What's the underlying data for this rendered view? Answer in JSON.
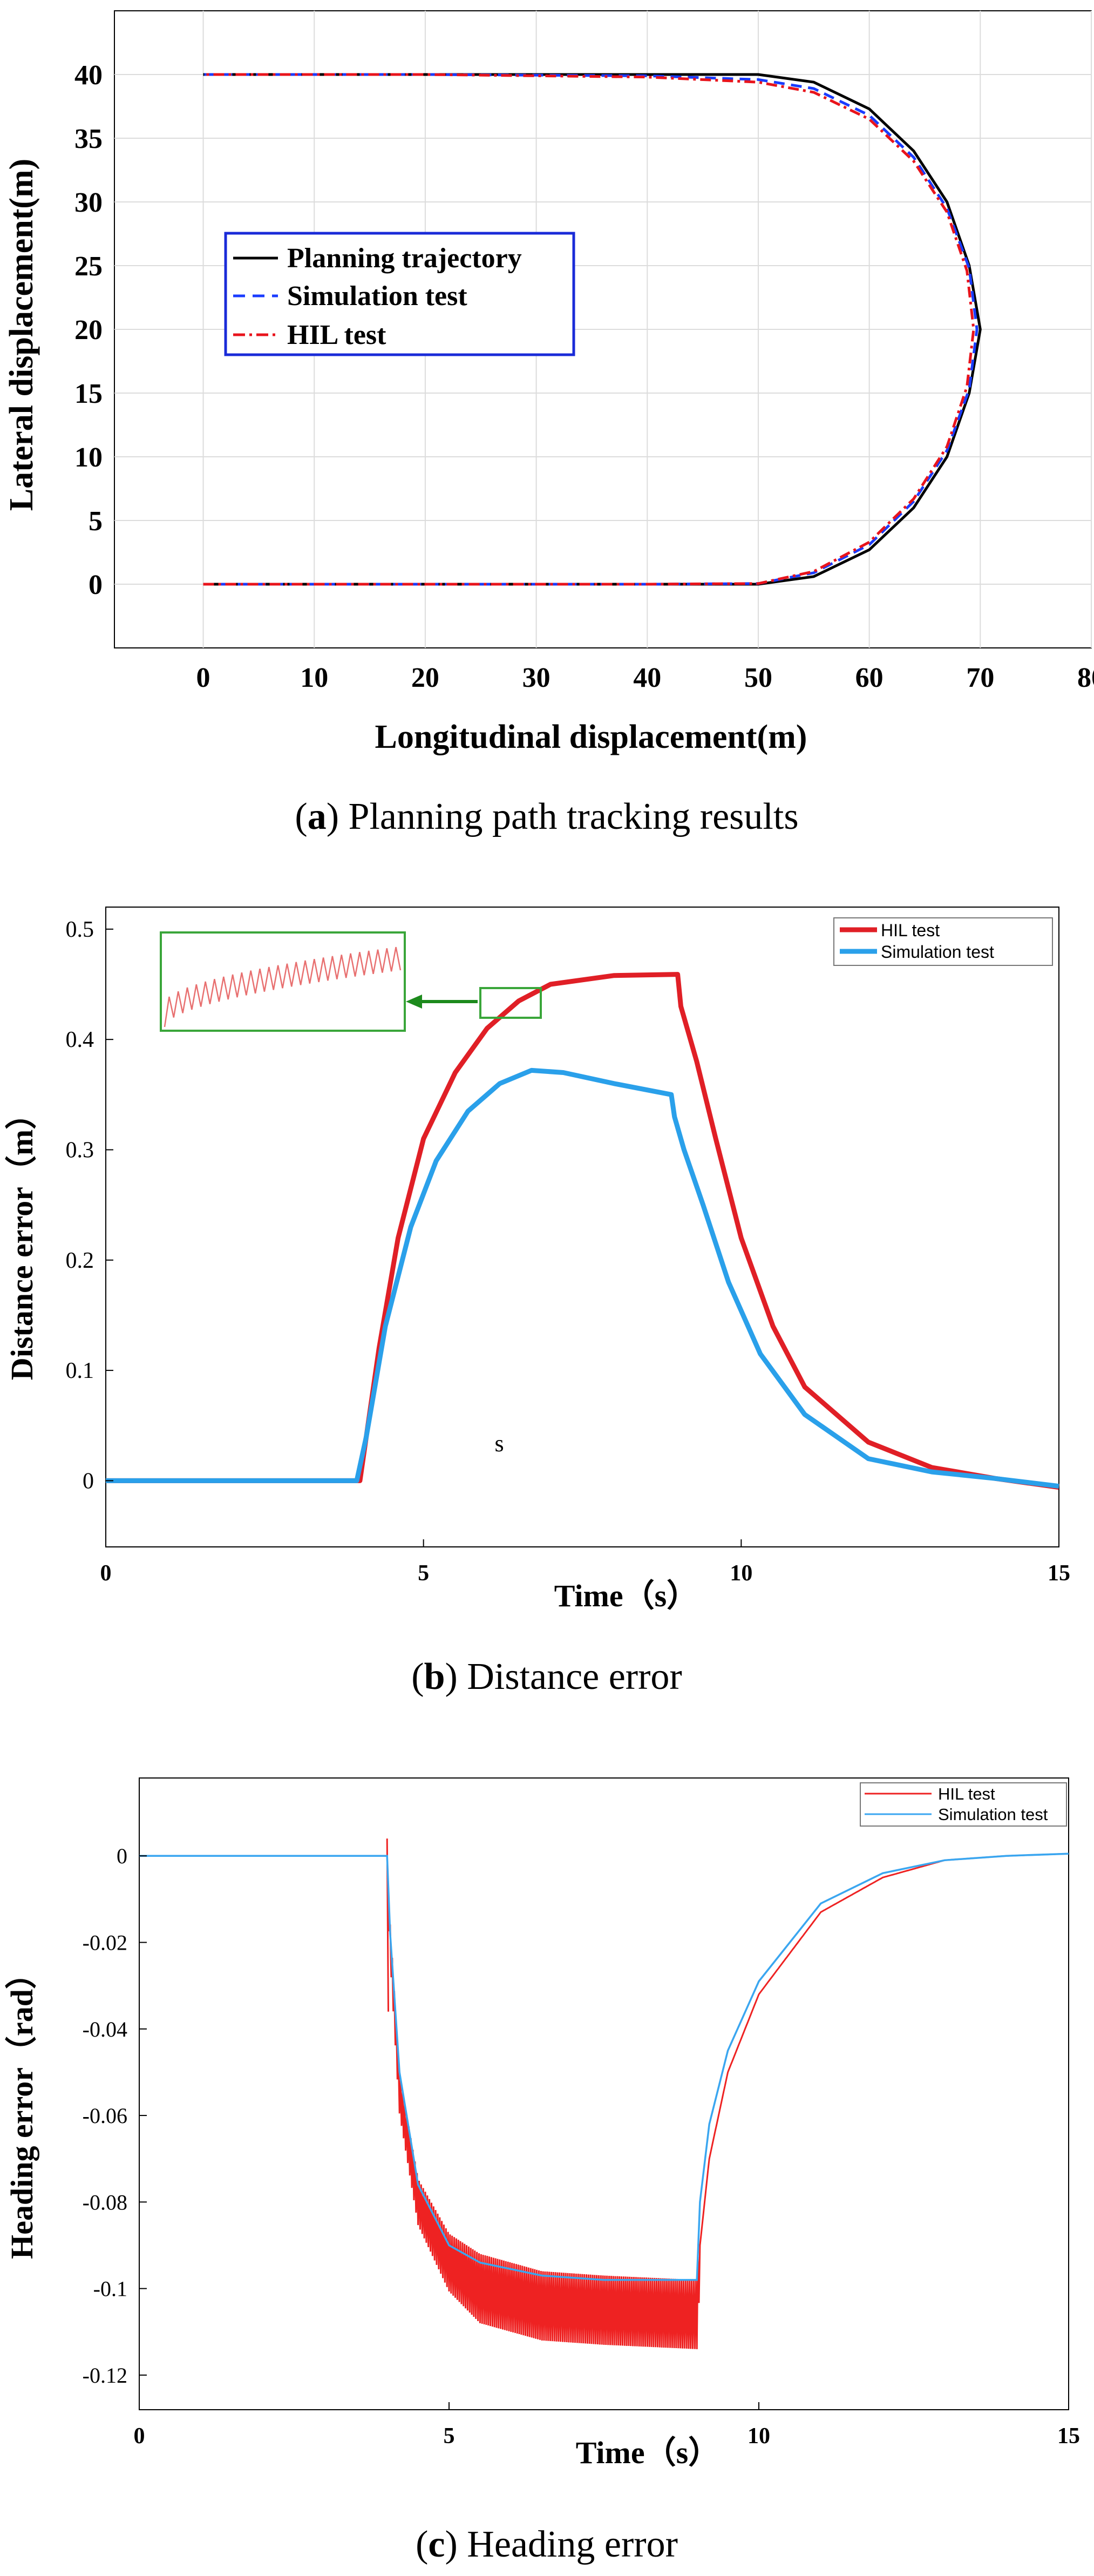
{
  "colors": {
    "black": "#000000",
    "blue": "#1a3cff",
    "red": "#e8141c",
    "hil_b": "#e01f26",
    "sim_b": "#2aa0ea",
    "hil_c": "#ee2222",
    "sim_c": "#3aa6f0",
    "grid": "#dcdcdc",
    "inset_box": "#3aa63a",
    "legend_box_a": "#1a2bd8"
  },
  "panels": [
    {
      "id": "a",
      "caption_letter": "a",
      "caption_open": "(",
      "caption_close": ") Planning path tracking results",
      "xlabel": "Longitudinal displacement(m)",
      "ylabel": "Lateral displacement(m)",
      "xticks": [
        "0",
        "10",
        "20",
        "30",
        "40",
        "50",
        "60",
        "70",
        "80"
      ],
      "yticks": [
        "0",
        "5",
        "10",
        "15",
        "20",
        "25",
        "30",
        "35",
        "40"
      ],
      "legend": [
        "Planning trajectory",
        "Simulation test",
        "HIL test"
      ]
    },
    {
      "id": "b",
      "caption_letter": "b",
      "caption_open": "(",
      "caption_close": ") Distance error",
      "xlabel": "Time（s）",
      "ylabel": "Distance error（m）",
      "xticks": [
        "0",
        "5",
        "10",
        "15"
      ],
      "yticks": [
        "0",
        "0.1",
        "0.2",
        "0.3",
        "0.4",
        "0.5"
      ],
      "legend": [
        "HIL test",
        "Simulation test"
      ],
      "annotation": "s"
    },
    {
      "id": "c",
      "caption_letter": "c",
      "caption_open": "(",
      "caption_close": ") Heading error",
      "xlabel": "Time（s）",
      "ylabel": "Heading error（rad）",
      "xticks": [
        "0",
        "5",
        "10",
        "15"
      ],
      "yticks": [
        "0",
        "-0.02",
        "-0.04",
        "-0.06",
        "-0.08",
        "-0.1",
        "-0.12"
      ],
      "legend": [
        "HIL  test",
        "Simulation test"
      ]
    }
  ],
  "chart_data": [
    {
      "type": "line",
      "xlim": [
        -8,
        80
      ],
      "ylim": [
        -5,
        45
      ],
      "grid": true,
      "legend_position": "left-middle",
      "series": [
        {
          "name": "Planning trajectory",
          "style": "solid",
          "x": [
            0,
            20,
            40,
            50,
            55,
            60,
            64,
            67,
            69,
            70,
            69,
            67,
            64,
            60,
            55,
            50,
            40,
            20,
            0
          ],
          "y": [
            0,
            0,
            0,
            0,
            0.6,
            2.7,
            6,
            10,
            15,
            20,
            25,
            30,
            34,
            37.3,
            39.4,
            40,
            40,
            40,
            40
          ]
        },
        {
          "name": "Simulation test",
          "style": "dashed",
          "x": [
            0,
            20,
            40,
            50,
            55,
            60,
            64,
            67,
            69,
            69.7,
            69,
            67,
            64,
            60,
            55,
            50,
            40,
            20,
            0
          ],
          "y": [
            0,
            0,
            0,
            0.05,
            0.9,
            3.1,
            6.5,
            10.5,
            15.3,
            20,
            24.8,
            29.5,
            33.5,
            36.8,
            38.9,
            39.6,
            39.9,
            40,
            40
          ]
        },
        {
          "name": "HIL test",
          "style": "dashdot",
          "x": [
            0,
            20,
            40,
            50,
            55,
            60,
            64,
            67,
            68.8,
            69.4,
            68.8,
            67,
            64,
            60,
            55,
            50,
            40,
            20,
            0
          ],
          "y": [
            0,
            0,
            0,
            0.05,
            1.0,
            3.3,
            6.7,
            10.8,
            15.5,
            20,
            24.6,
            29.2,
            33.2,
            36.5,
            38.6,
            39.4,
            39.8,
            40,
            40
          ]
        }
      ]
    },
    {
      "type": "line",
      "xlim": [
        0,
        15
      ],
      "ylim": [
        -0.06,
        0.52
      ],
      "grid": false,
      "legend_position": "top-right",
      "series": [
        {
          "name": "HIL test",
          "x": [
            0,
            4.0,
            4.05,
            4.3,
            4.6,
            5.0,
            5.5,
            6.0,
            6.5,
            7.0,
            8.0,
            9.0,
            9.05,
            9.3,
            9.6,
            10.0,
            10.5,
            11,
            12,
            13,
            14,
            15
          ],
          "y": [
            0,
            0,
            0.02,
            0.12,
            0.22,
            0.31,
            0.37,
            0.41,
            0.435,
            0.45,
            0.458,
            0.459,
            0.43,
            0.38,
            0.31,
            0.22,
            0.14,
            0.085,
            0.035,
            0.012,
            0.002,
            -0.006
          ]
        },
        {
          "name": "Simulation test",
          "x": [
            0,
            3.95,
            4.1,
            4.4,
            4.8,
            5.2,
            5.7,
            6.2,
            6.7,
            7.2,
            8.0,
            8.9,
            8.95,
            9.1,
            9.4,
            9.8,
            10.3,
            11,
            12,
            13,
            14,
            15
          ],
          "y": [
            0,
            0,
            0.04,
            0.14,
            0.23,
            0.29,
            0.335,
            0.36,
            0.372,
            0.37,
            0.36,
            0.35,
            0.33,
            0.3,
            0.25,
            0.18,
            0.115,
            0.06,
            0.02,
            0.008,
            0.002,
            -0.005
          ]
        }
      ]
    },
    {
      "type": "line",
      "xlim": [
        0,
        15
      ],
      "ylim": [
        -0.128,
        0.018
      ],
      "grid": false,
      "legend_position": "top-right",
      "series": [
        {
          "name": "HIL  test",
          "x": [
            0,
            4.0,
            4.05,
            4.2,
            4.5,
            5.0,
            5.5,
            6.5,
            7.5,
            9.0,
            9.05,
            9.2,
            9.5,
            10,
            11,
            12,
            13,
            14,
            15
          ],
          "y": [
            0,
            0,
            -0.02,
            -0.055,
            -0.08,
            -0.094,
            -0.1,
            -0.104,
            -0.105,
            -0.106,
            -0.09,
            -0.07,
            -0.05,
            -0.032,
            -0.013,
            -0.005,
            -0.001,
            0,
            0.0005
          ]
        },
        {
          "name": "Simulation test",
          "x": [
            0,
            4.0,
            4.05,
            4.2,
            4.5,
            5.0,
            5.5,
            6.5,
            7.5,
            9.0,
            9.05,
            9.2,
            9.5,
            10,
            11,
            12,
            13,
            14,
            15
          ],
          "y": [
            0,
            0,
            -0.018,
            -0.05,
            -0.076,
            -0.09,
            -0.094,
            -0.097,
            -0.098,
            -0.098,
            -0.08,
            -0.062,
            -0.045,
            -0.029,
            -0.011,
            -0.004,
            -0.001,
            0,
            0.0005
          ]
        }
      ]
    }
  ]
}
